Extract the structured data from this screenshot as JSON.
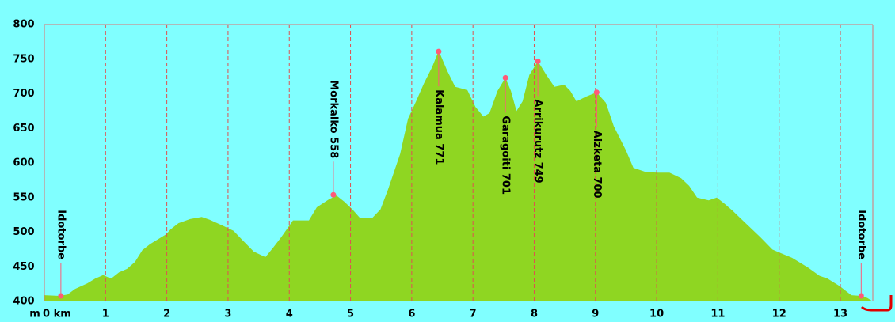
{
  "chart_data": {
    "type": "area",
    "x_label": "m",
    "color": "#8fd622",
    "grid": true,
    "xlim": [
      0,
      13.53
    ],
    "ylim": [
      400,
      800
    ],
    "xticks": [
      {
        "value": 0,
        "label": "0 km"
      },
      1,
      2,
      3,
      4,
      5,
      6,
      7,
      8,
      9,
      10,
      11,
      12,
      13
    ],
    "yticks": [
      400,
      450,
      500,
      550,
      600,
      650,
      700,
      750,
      800
    ],
    "x": [
      0,
      0.25,
      0.38,
      0.5,
      0.7,
      0.83,
      0.96,
      1.09,
      1.22,
      1.35,
      1.48,
      1.6,
      1.73,
      1.86,
      1.99,
      2.06,
      2.19,
      2.38,
      2.57,
      2.7,
      2.9,
      3.09,
      3.22,
      3.42,
      3.61,
      3.74,
      3.87,
      4.06,
      4.32,
      4.45,
      4.64,
      4.77,
      4.9,
      5.03,
      5.16,
      5.36,
      5.49,
      5.61,
      5.81,
      5.94,
      6.07,
      6.2,
      6.33,
      6.44,
      6.58,
      6.71,
      6.84,
      6.91,
      7.04,
      7.17,
      7.27,
      7.4,
      7.53,
      7.62,
      7.71,
      7.81,
      7.92,
      8.06,
      8.2,
      8.33,
      8.49,
      8.59,
      8.69,
      8.85,
      9.02,
      9.17,
      9.3,
      9.5,
      9.62,
      9.82,
      10.01,
      10.21,
      10.4,
      10.53,
      10.66,
      10.85,
      10.98,
      11.11,
      11.24,
      11.37,
      11.5,
      11.69,
      11.89,
      12.02,
      12.21,
      12.47,
      12.66,
      12.79,
      12.99,
      13.18,
      13.34,
      13.44,
      13.53
    ],
    "values": [
      409,
      408,
      410,
      418,
      426,
      433,
      438,
      433,
      442,
      447,
      457,
      474,
      483,
      490,
      497,
      504,
      513,
      519,
      522,
      518,
      510,
      502,
      490,
      472,
      464,
      478,
      493,
      517,
      517,
      536,
      547,
      553,
      544,
      533,
      520,
      521,
      533,
      561,
      613,
      664,
      689,
      715,
      738,
      762,
      733,
      710,
      707,
      705,
      681,
      667,
      672,
      704,
      723,
      704,
      675,
      689,
      727,
      747,
      727,
      710,
      713,
      704,
      689,
      696,
      702,
      687,
      653,
      618,
      593,
      587,
      586,
      586,
      578,
      567,
      550,
      546,
      550,
      541,
      531,
      520,
      509,
      493,
      475,
      470,
      463,
      449,
      437,
      433,
      422,
      409,
      408,
      405,
      400
    ],
    "marker_color": "#ff5a78",
    "annotations": [
      {
        "text": "Idotorbe",
        "x": 0.27,
        "y": 408,
        "placement": "above"
      },
      {
        "text": "Morkaiko 558",
        "x": 4.72,
        "y": 554,
        "placement": "above"
      },
      {
        "text": "Kalamua 771",
        "x": 6.44,
        "y": 761,
        "placement": "below"
      },
      {
        "text": "Garagoiti 701",
        "x": 7.53,
        "y": 723,
        "placement": "below"
      },
      {
        "text": "Arrikurutz 749",
        "x": 8.06,
        "y": 747,
        "placement": "below"
      },
      {
        "text": "Aizketa 700",
        "x": 9.02,
        "y": 702,
        "placement": "below"
      },
      {
        "text": "Idotorbe",
        "x": 13.34,
        "y": 408,
        "placement": "above"
      }
    ]
  }
}
